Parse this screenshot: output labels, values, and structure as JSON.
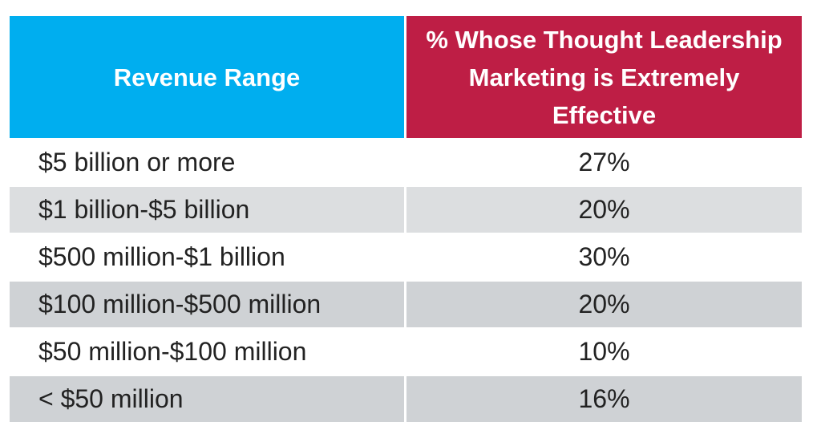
{
  "chart_data": {
    "type": "table",
    "columns": [
      "Revenue Range",
      "% Whose Thought Leadership Marketing is Extremely Effective"
    ],
    "rows": [
      {
        "range": "$5 billion or more",
        "percent": "27%"
      },
      {
        "range": "$1 billion-$5 billion",
        "percent": "20%"
      },
      {
        "range": "$500 million-$1 billion",
        "percent": "30%"
      },
      {
        "range": "$100 million-$500 million",
        "percent": "20%"
      },
      {
        "range": "$50 million-$100 million",
        "percent": "10%"
      },
      {
        "range": "< $50 million",
        "percent": "16%"
      }
    ]
  },
  "colors": {
    "header_left": "#00aeef",
    "header_right": "#be1e45",
    "row_shade": "#dcdee0"
  }
}
